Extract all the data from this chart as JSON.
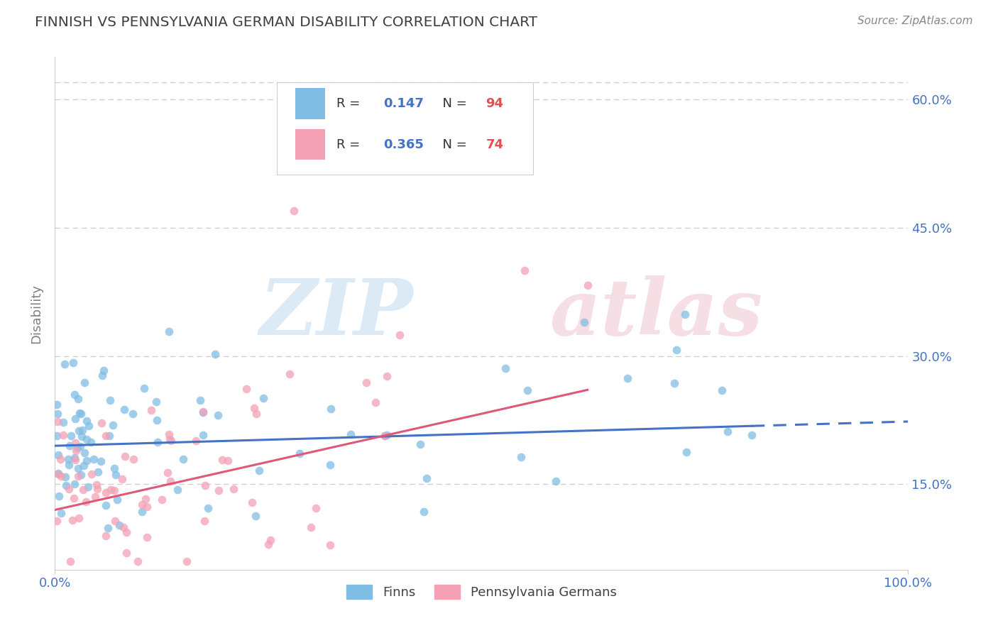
{
  "title": "FINNISH VS PENNSYLVANIA GERMAN DISABILITY CORRELATION CHART",
  "source": "Source: ZipAtlas.com",
  "ylabel": "Disability",
  "xlim": [
    0,
    100
  ],
  "ylim": [
    5,
    65
  ],
  "ytick_vals": [
    15,
    30,
    45,
    60
  ],
  "ytick_labels": [
    "15.0%",
    "30.0%",
    "45.0%",
    "60.0%"
  ],
  "xtick_vals": [
    0,
    100
  ],
  "xtick_labels": [
    "0.0%",
    "100.0%"
  ],
  "series1_name": "Finns",
  "series1_R": 0.147,
  "series1_N": 94,
  "series1_color": "#7fbde4",
  "series1_trend_color": "#4472c4",
  "series2_name": "Pennsylvania Germans",
  "series2_R": 0.365,
  "series2_N": 74,
  "series2_color": "#f4a0b5",
  "series2_trend_color": "#e05878",
  "background_color": "#ffffff",
  "grid_color": "#cccccc",
  "title_color": "#404040",
  "axis_label_color": "#808080",
  "tick_color": "#4472c4",
  "watermark_zip_color": "#c5ddf0",
  "watermark_atlas_color": "#f0c8d5",
  "legend_R_color": "#4472c4",
  "legend_N_color": "#e05050",
  "legend_border_color": "#cccccc",
  "source_color": "#888888"
}
